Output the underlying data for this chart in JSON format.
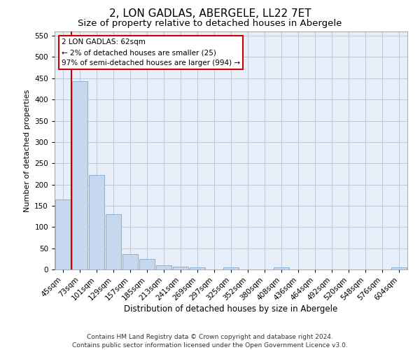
{
  "title": "2, LON GADLAS, ABERGELE, LL22 7ET",
  "subtitle": "Size of property relative to detached houses in Abergele",
  "xlabel": "Distribution of detached houses by size in Abergele",
  "ylabel": "Number of detached properties",
  "bar_color": "#c5d8f0",
  "bar_edge_color": "#7baad4",
  "grid_color": "#b8c8e0",
  "bg_color": "#e8eef8",
  "annotation_box_color": "#cc0000",
  "vline_color": "#cc0000",
  "categories": [
    "45sqm",
    "73sqm",
    "101sqm",
    "129sqm",
    "157sqm",
    "185sqm",
    "213sqm",
    "241sqm",
    "269sqm",
    "297sqm",
    "325sqm",
    "352sqm",
    "380sqm",
    "408sqm",
    "436sqm",
    "464sqm",
    "492sqm",
    "520sqm",
    "548sqm",
    "576sqm",
    "604sqm"
  ],
  "values": [
    165,
    443,
    222,
    130,
    37,
    24,
    10,
    6,
    5,
    0,
    5,
    0,
    0,
    5,
    0,
    0,
    0,
    0,
    0,
    0,
    5
  ],
  "ylim": [
    0,
    560
  ],
  "yticks": [
    0,
    50,
    100,
    150,
    200,
    250,
    300,
    350,
    400,
    450,
    500,
    550
  ],
  "vline_x_idx": 0,
  "annotation_text": "2 LON GADLAS: 62sqm\n← 2% of detached houses are smaller (25)\n97% of semi-detached houses are larger (994) →",
  "footnote": "Contains HM Land Registry data © Crown copyright and database right 2024.\nContains public sector information licensed under the Open Government Licence v3.0.",
  "title_fontsize": 11,
  "subtitle_fontsize": 9.5,
  "xlabel_fontsize": 8.5,
  "ylabel_fontsize": 8,
  "tick_fontsize": 7.5,
  "annot_fontsize": 7.5,
  "footnote_fontsize": 6.5
}
